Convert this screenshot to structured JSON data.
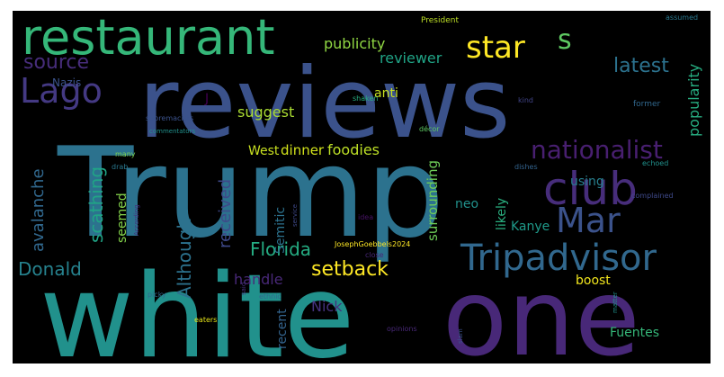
{
  "words": [
    {
      "text": "reviews",
      "color": "#3b528b"
    },
    {
      "text": "Trump",
      "color": "#2c728e"
    },
    {
      "text": "white",
      "color": "#21918c"
    },
    {
      "text": "one",
      "color": "#482878"
    },
    {
      "text": "restaurant",
      "color": "#35b779"
    },
    {
      "text": "Lago",
      "color": "#443983"
    },
    {
      "text": "club",
      "color": "#472d7b"
    },
    {
      "text": "Mar",
      "color": "#3b528b"
    },
    {
      "text": "Tripadvisor",
      "color": "#31688e"
    },
    {
      "text": "nationalist",
      "color": "#481f70"
    },
    {
      "text": "star",
      "color": "#fde725"
    },
    {
      "text": "s",
      "color": "#5ec962"
    },
    {
      "text": "source",
      "color": "#472d7b"
    },
    {
      "text": "latest",
      "color": "#2c728e"
    },
    {
      "text": "publicity",
      "color": "#90d743"
    },
    {
      "text": "reviewer",
      "color": "#20a486"
    },
    {
      "text": "popularity",
      "color": "#27ad81"
    },
    {
      "text": "Nazis",
      "color": "#3b528b"
    },
    {
      "text": "J",
      "color": "#440154"
    },
    {
      "text": "anti",
      "color": "#c8e020"
    },
    {
      "text": "suggest",
      "color": "#aadc32"
    },
    {
      "text": "avalanche",
      "color": "#31688e"
    },
    {
      "text": "scathing",
      "color": "#20a486"
    },
    {
      "text": "received",
      "color": "#3e4989"
    },
    {
      "text": "Although",
      "color": "#2c728e"
    },
    {
      "text": "seemed",
      "color": "#84d44b"
    },
    {
      "text": "West",
      "color": "#c8e020"
    },
    {
      "text": "dinner",
      "color": "#d2e21b"
    },
    {
      "text": "foodies",
      "color": "#bddf26"
    },
    {
      "text": "Semitic",
      "color": "#2c728e"
    },
    {
      "text": "surrounding",
      "color": "#6ece58"
    },
    {
      "text": "using",
      "color": "#277f8e"
    },
    {
      "text": "Florida",
      "color": "#25ac82"
    },
    {
      "text": "setback",
      "color": "#fde725"
    },
    {
      "text": "Donald",
      "color": "#26828e"
    },
    {
      "text": "handle",
      "color": "#482878"
    },
    {
      "text": "Kanye",
      "color": "#1f9a8a"
    },
    {
      "text": "likely",
      "color": "#29af7f"
    },
    {
      "text": "neo",
      "color": "#21918c"
    },
    {
      "text": "boost",
      "color": "#f1e51d"
    },
    {
      "text": "Nick",
      "color": "#46337f"
    },
    {
      "text": "recent",
      "color": "#33638d"
    },
    {
      "text": "Fuentes",
      "color": "#35b779"
    },
    {
      "text": "President",
      "color": "#bddf26"
    },
    {
      "text": "assumed",
      "color": "#2a788e"
    },
    {
      "text": "supremacists",
      "color": "#3b528b"
    },
    {
      "text": "shaken",
      "color": "#27ad81"
    },
    {
      "text": "kind",
      "color": "#414487"
    },
    {
      "text": "former",
      "color": "#31688e"
    },
    {
      "text": "commentators",
      "color": "#21918c"
    },
    {
      "text": "décor",
      "color": "#5ec962"
    },
    {
      "text": "many",
      "color": "#7ad151"
    },
    {
      "text": "drab",
      "color": "#2a788e"
    },
    {
      "text": "According",
      "color": "#46307e"
    },
    {
      "text": "service",
      "color": "#3e4989"
    },
    {
      "text": "dishes",
      "color": "#33638d"
    },
    {
      "text": "echoed",
      "color": "#21918c"
    },
    {
      "text": "idea",
      "color": "#471365"
    },
    {
      "text": "JosephGoebbels2024",
      "color": "#fde725"
    },
    {
      "text": "close",
      "color": "#482878"
    },
    {
      "text": "complained",
      "color": "#3e4989"
    },
    {
      "text": "said",
      "color": "#46337f"
    },
    {
      "text": "picky",
      "color": "#31688e"
    },
    {
      "text": "ethnic",
      "color": "#31688e"
    },
    {
      "text": "matter",
      "color": "#21918c"
    },
    {
      "text": "eaters",
      "color": "#e5e419"
    },
    {
      "text": "opinions",
      "color": "#482878"
    },
    {
      "text": "slam",
      "color": "#3b528b"
    }
  ]
}
